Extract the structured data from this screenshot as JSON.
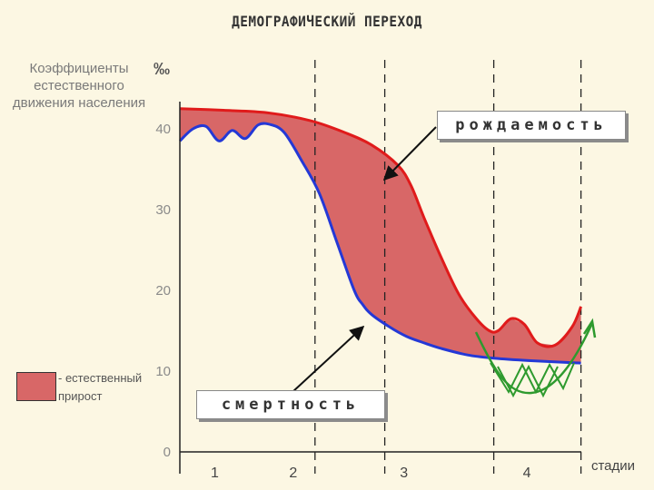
{
  "chart_data": {
    "type": "line",
    "title": "ДЕМОГРАФИЧЕСКИЙ ПЕРЕХОД",
    "ylabel": "Коэффициенты естественного движения населения",
    "yunit": "‰",
    "xlabel": "стадии",
    "ylim": [
      0,
      45
    ],
    "yticks": [
      0,
      10,
      20,
      30,
      40
    ],
    "stages": [
      "1",
      "2",
      "3",
      "4"
    ],
    "stage_boundaries": [
      1.55,
      2.35,
      3.6,
      4.6
    ],
    "series": [
      {
        "name": "рождаемость",
        "color": "#e01b1b",
        "x": [
          0,
          0.5,
          1.0,
          1.5,
          1.9,
          2.2,
          2.5,
          2.65,
          2.8,
          3.0,
          3.2,
          3.4,
          3.55,
          3.65,
          3.8,
          3.95,
          4.1,
          4.3,
          4.5,
          4.6
        ],
        "y": [
          42.5,
          42.3,
          42.0,
          41.0,
          39.5,
          38.0,
          35.5,
          33.0,
          29.0,
          24.0,
          19.5,
          16.5,
          15.0,
          15.0,
          16.5,
          15.8,
          13.5,
          13.2,
          15.5,
          18.0
        ]
      },
      {
        "name": "смертность",
        "color": "#2438d6",
        "x": [
          0,
          0.15,
          0.3,
          0.45,
          0.6,
          0.75,
          0.9,
          1.05,
          1.2,
          1.4,
          1.6,
          1.8,
          2.0,
          2.1,
          2.2,
          2.4,
          2.6,
          2.8,
          3.0,
          3.3,
          3.6,
          4.0,
          4.6
        ],
        "y": [
          38.5,
          40.0,
          40.3,
          38.5,
          39.8,
          38.8,
          40.5,
          40.5,
          39.5,
          36.0,
          32.0,
          26.0,
          20.0,
          18.2,
          17.0,
          15.5,
          14.3,
          13.5,
          12.8,
          12.0,
          11.6,
          11.3,
          11.0
        ]
      }
    ],
    "legend": [
      {
        "label": "- естественный прирост",
        "color": "#d86767"
      }
    ],
    "annotations": [
      "рождаемость",
      "смертность"
    ]
  }
}
